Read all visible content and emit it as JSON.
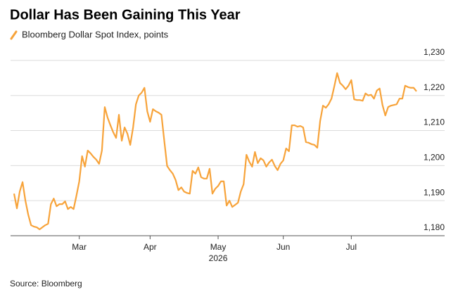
{
  "chart_data": {
    "type": "line",
    "title": "Dollar Has Been Gaining This Year",
    "x_label": "2026",
    "source": "Source: Bloomberg",
    "legend": "top-left",
    "grid": true,
    "categories": [
      null,
      null,
      null,
      null,
      null,
      null,
      null,
      null,
      null,
      null,
      null,
      null,
      null,
      null,
      null,
      null,
      null,
      null,
      null,
      null,
      null,
      null,
      null,
      "Mar",
      null,
      null,
      null,
      null,
      null,
      null,
      null,
      null,
      null,
      null,
      null,
      null,
      null,
      null,
      null,
      null,
      null,
      null,
      null,
      null,
      null,
      null,
      null,
      null,
      "Apr",
      null,
      null,
      null,
      null,
      null,
      null,
      null,
      null,
      null,
      null,
      null,
      null,
      null,
      null,
      null,
      null,
      null,
      null,
      null,
      null,
      null,
      null,
      null,
      "May",
      null,
      null,
      null,
      null,
      null,
      null,
      null,
      null,
      null,
      null,
      null,
      null,
      null,
      null,
      null,
      null,
      null,
      null,
      null,
      null,
      null,
      null,
      "Jun",
      null,
      null,
      null,
      null,
      null,
      null,
      null,
      null,
      null,
      null,
      null,
      null,
      null,
      null,
      null,
      null,
      null,
      null,
      null,
      null,
      null,
      null,
      null,
      "Jul",
      null,
      null,
      null,
      null,
      null,
      null,
      null,
      null,
      null,
      null,
      null,
      null,
      null,
      null,
      null,
      null,
      null,
      null,
      null,
      null,
      null,
      null,
      null
    ],
    "series": [
      {
        "name": "Bloomberg Dollar Spot Index, points",
        "color": "#f7a33a",
        "values": [
          1192.0,
          1187.8,
          1192.6,
          1195.3,
          1190.0,
          1186.0,
          1183.0,
          1182.6,
          1182.4,
          1181.8,
          1182.4,
          1183.0,
          1183.4,
          1189.0,
          1190.6,
          1188.4,
          1189.0,
          1189.0,
          1189.8,
          1187.6,
          1188.2,
          1187.6,
          1191.4,
          1195.5,
          1202.7,
          1199.7,
          1204.3,
          1203.5,
          1202.5,
          1201.7,
          1200.5,
          1204.3,
          1216.7,
          1213.7,
          1211.5,
          1209.5,
          1207.9,
          1214.5,
          1207.1,
          1210.9,
          1209.1,
          1205.9,
          1210.9,
          1217.5,
          1220.0,
          1220.8,
          1222.2,
          1215.5,
          1212.5,
          1216.1,
          1215.5,
          1215.1,
          1214.5,
          1207.1,
          1199.9,
          1198.7,
          1197.7,
          1195.9,
          1193.0,
          1193.8,
          1192.6,
          1192.2,
          1192.0,
          1198.5,
          1197.7,
          1199.5,
          1196.7,
          1196.3,
          1196.3,
          1199.1,
          1192.0,
          1193.4,
          1194.2,
          1195.5,
          1195.5,
          1188.6,
          1190.0,
          1188.2,
          1188.8,
          1189.4,
          1192.6,
          1194.7,
          1203.1,
          1201.1,
          1199.7,
          1203.9,
          1200.7,
          1202.1,
          1201.5,
          1199.7,
          1200.9,
          1201.7,
          1199.9,
          1198.7,
          1200.5,
          1201.5,
          1204.9,
          1204.1,
          1211.5,
          1211.5,
          1211.1,
          1211.3,
          1210.9,
          1206.7,
          1206.5,
          1206.1,
          1205.9,
          1205.1,
          1212.7,
          1217.1,
          1216.5,
          1217.5,
          1219.1,
          1222.6,
          1226.4,
          1223.6,
          1222.8,
          1221.8,
          1222.8,
          1224.4,
          1218.9,
          1218.7,
          1218.7,
          1218.5,
          1220.6,
          1220.0,
          1220.2,
          1219.1,
          1221.4,
          1222.0,
          1217.3,
          1214.3,
          1216.7,
          1217.1,
          1217.3,
          1217.5,
          1219.1,
          1219.1,
          1222.8,
          1222.4,
          1222.2,
          1222.2,
          1221.2
        ]
      }
    ],
    "ylim": [
      1180,
      1235
    ],
    "yticks": [
      {
        "value": 1180,
        "label": "1,180"
      },
      {
        "value": 1190,
        "label": "1,190"
      },
      {
        "value": 1200,
        "label": "1,200"
      },
      {
        "value": 1210,
        "label": "1,210"
      },
      {
        "value": 1220,
        "label": "1,220"
      },
      {
        "value": 1230,
        "label": "1,230"
      }
    ]
  }
}
